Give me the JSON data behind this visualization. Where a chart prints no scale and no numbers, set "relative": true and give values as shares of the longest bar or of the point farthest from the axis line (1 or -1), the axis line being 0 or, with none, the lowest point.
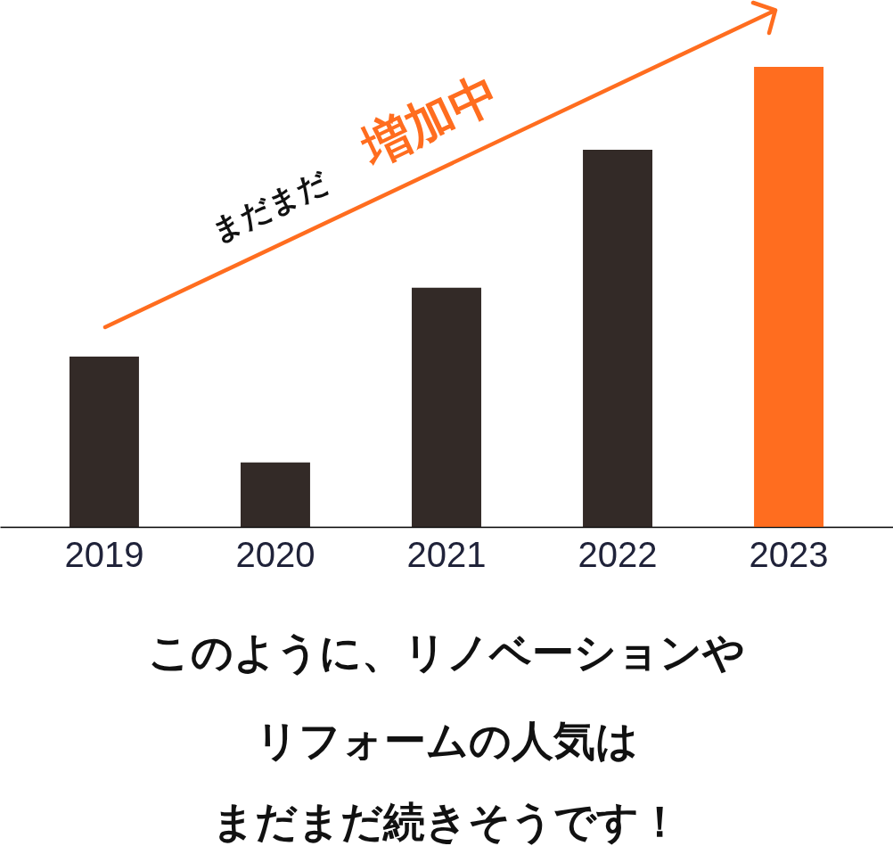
{
  "chart_data": {
    "type": "bar",
    "relative": true,
    "categories": [
      "2019",
      "2020",
      "2021",
      "2022",
      "2023"
    ],
    "values": [
      0.37,
      0.14,
      0.52,
      0.82,
      1
    ],
    "colors": [
      "#332a27",
      "#332a27",
      "#332a27",
      "#332a27",
      "#ff6d1f"
    ],
    "annotations": [
      "まだまだ",
      "増加中",
      "このように、リノベーションや",
      "リフォームの人気は",
      "まだまだ続きそうです！"
    ]
  }
}
